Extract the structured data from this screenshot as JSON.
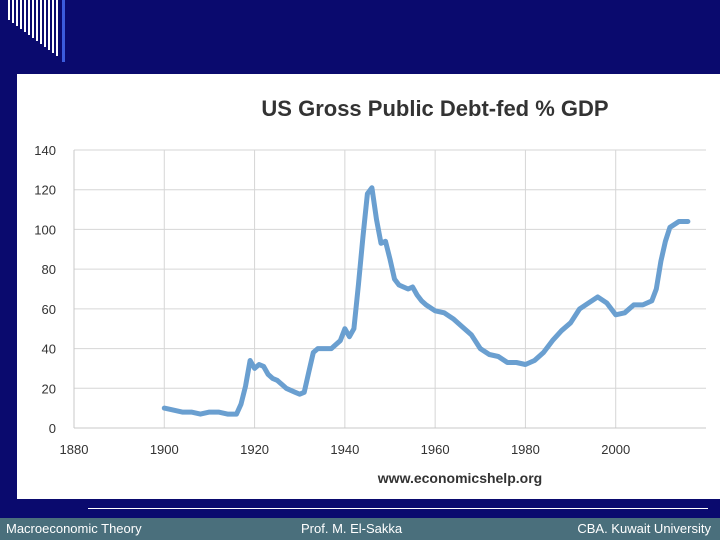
{
  "chart_data": {
    "type": "line",
    "title": "US Gross Public Debt-fed % GDP",
    "source": "www.economicshelp.org",
    "xlim": [
      1880,
      2020
    ],
    "ylim": [
      0,
      140
    ],
    "x_ticks": [
      1880,
      1900,
      1920,
      1940,
      1960,
      1980,
      2000
    ],
    "y_ticks": [
      0,
      20,
      40,
      60,
      80,
      100,
      120,
      140
    ],
    "grid": true,
    "line_color": "#6a9fd0",
    "series": [
      {
        "x": [
          1900,
          1902,
          1904,
          1906,
          1908,
          1910,
          1912,
          1914,
          1916,
          1917,
          1918,
          1919,
          1920,
          1921,
          1922,
          1923,
          1924,
          1925,
          1926,
          1927,
          1928,
          1929,
          1930,
          1931,
          1932,
          1933,
          1934,
          1935,
          1936,
          1937,
          1938,
          1939,
          1940,
          1941,
          1942,
          1943,
          1944,
          1945,
          1946,
          1947,
          1948,
          1949,
          1950,
          1951,
          1952,
          1953,
          1954,
          1955,
          1956,
          1957,
          1958,
          1960,
          1962,
          1964,
          1966,
          1968,
          1970,
          1972,
          1974,
          1976,
          1978,
          1980,
          1982,
          1984,
          1986,
          1988,
          1990,
          1992,
          1994,
          1996,
          1998,
          2000,
          2002,
          2004,
          2006,
          2008,
          2009,
          2010,
          2011,
          2012,
          2014,
          2016
        ],
        "y": [
          10,
          9,
          8,
          8,
          7,
          8,
          8,
          7,
          7,
          12,
          21,
          34,
          30,
          32,
          31,
          27,
          25,
          24,
          22,
          20,
          19,
          18,
          17,
          18,
          28,
          38,
          40,
          40,
          40,
          40,
          42,
          44,
          50,
          46,
          50,
          72,
          96,
          118,
          121,
          105,
          93,
          94,
          85,
          75,
          72,
          71,
          70,
          71,
          67,
          64,
          62,
          59,
          58,
          55,
          51,
          47,
          40,
          37,
          36,
          33,
          33,
          32,
          34,
          38,
          44,
          49,
          53,
          60,
          63,
          66,
          63,
          57,
          58,
          62,
          62,
          64,
          70,
          84,
          94,
          101,
          104,
          104
        ]
      }
    ]
  },
  "footer": {
    "left": "Macroeconomic Theory",
    "center": "Prof. M. El-Sakka",
    "right": "CBA. Kuwait University"
  }
}
